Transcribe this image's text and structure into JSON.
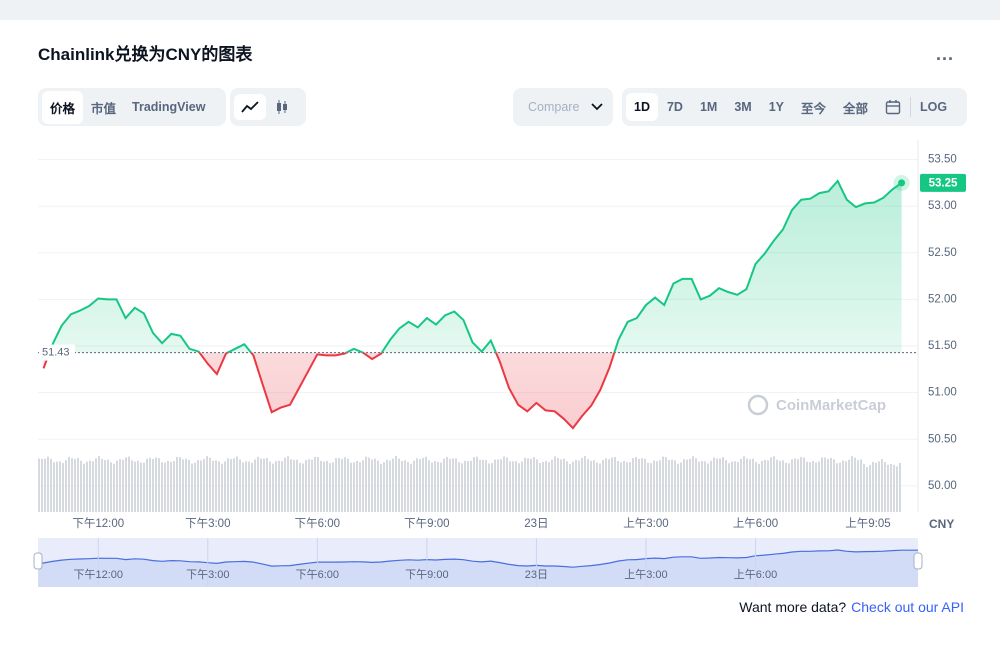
{
  "header": {
    "title": "Chainlink兑换为CNY的图表",
    "menu": "..."
  },
  "toolbar": {
    "tabs": [
      "价格",
      "市值",
      "TradingView"
    ],
    "compare": "Compare",
    "ranges": [
      "1D",
      "7D",
      "1M",
      "3M",
      "1Y",
      "至今",
      "全部"
    ],
    "log": "LOG"
  },
  "chart_data": {
    "type": "line",
    "x": [
      10.5,
      10.75,
      11,
      11.25,
      11.5,
      11.75,
      12,
      12.25,
      12.5,
      12.75,
      13,
      13.25,
      13.5,
      13.75,
      14,
      14.25,
      14.5,
      14.75,
      15,
      15.25,
      15.5,
      15.75,
      16,
      16.25,
      16.5,
      16.75,
      17,
      17.25,
      17.5,
      17.75,
      18,
      18.25,
      18.5,
      18.75,
      19,
      19.25,
      19.5,
      19.75,
      20,
      20.25,
      20.5,
      20.75,
      21,
      21.25,
      21.5,
      21.75,
      22,
      22.25,
      22.5,
      22.75,
      23,
      23.25,
      23.5,
      23.75,
      24,
      24.25,
      24.5,
      24.75,
      25,
      25.25,
      25.5,
      25.75,
      26,
      26.25,
      26.5,
      26.75,
      27,
      27.25,
      27.5,
      27.75,
      28,
      28.25,
      28.5,
      28.75,
      29,
      29.25,
      29.5,
      29.75,
      30,
      30.25,
      30.5,
      30.75,
      31,
      31.25,
      31.5,
      31.75,
      32,
      32.25,
      32.5,
      32.75,
      33,
      33.25,
      33.5,
      33.75,
      34
    ],
    "values": [
      51.26,
      51.52,
      51.72,
      51.84,
      51.88,
      51.93,
      52.01,
      52.0,
      52.0,
      51.8,
      51.91,
      51.85,
      51.64,
      51.53,
      51.63,
      51.61,
      51.47,
      51.44,
      51.31,
      51.2,
      51.42,
      51.47,
      51.52,
      51.4,
      51.09,
      50.79,
      50.84,
      50.87,
      51.05,
      51.23,
      51.41,
      51.4,
      51.4,
      51.42,
      51.47,
      51.43,
      51.36,
      51.42,
      51.57,
      51.69,
      51.76,
      51.7,
      51.8,
      51.73,
      51.83,
      51.87,
      51.78,
      51.54,
      51.44,
      51.56,
      51.33,
      51.05,
      50.87,
      50.8,
      50.89,
      50.81,
      50.8,
      50.72,
      50.62,
      50.75,
      50.86,
      51.03,
      51.27,
      51.57,
      51.76,
      51.8,
      51.94,
      52.02,
      51.94,
      52.17,
      52.22,
      52.22,
      52.0,
      52.04,
      52.12,
      52.08,
      52.05,
      52.11,
      52.38,
      52.49,
      52.63,
      52.75,
      52.96,
      53.07,
      53.08,
      53.14,
      53.16,
      53.27,
      53.07,
      52.99,
      53.03,
      53.04,
      53.09,
      53.18,
      53.25
    ],
    "baseline": 51.43,
    "up_color": "#16c784",
    "down_color": "#ea3943",
    "xlim": [
      10.35,
      34.45
    ],
    "xticks": [
      {
        "value": 12,
        "label": "下午12:00"
      },
      {
        "value": 15,
        "label": "下午3:00"
      },
      {
        "value": 18,
        "label": "下午6:00"
      },
      {
        "value": 21,
        "label": "下午9:00"
      },
      {
        "value": 24,
        "label": "23日"
      },
      {
        "value": 27,
        "label": "上午3:00"
      },
      {
        "value": 30,
        "label": "上午6:00"
      },
      {
        "value": 33.08,
        "label": "上午9:05"
      }
    ],
    "ylim": [
      49.72,
      53.71
    ],
    "yticks": [
      {
        "value": 50,
        "label": "50.00"
      },
      {
        "value": 50.5,
        "label": "50.50"
      },
      {
        "value": 51,
        "label": "51.00"
      },
      {
        "value": 51.5,
        "label": "51.50"
      },
      {
        "value": 52,
        "label": "52.00"
      },
      {
        "value": 52.5,
        "label": "52.50"
      },
      {
        "value": 53,
        "label": "53.00"
      },
      {
        "value": 53.5,
        "label": "53.50"
      }
    ],
    "grid": true,
    "axis_unit": "CNY",
    "watermark": "CoinMarketCap"
  },
  "footer": {
    "text": "Want more data?",
    "link": "Check out our API"
  }
}
